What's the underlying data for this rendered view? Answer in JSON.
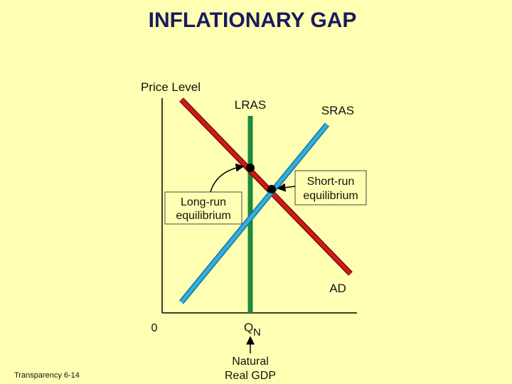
{
  "title": "INFLATIONARY GAP",
  "axes": {
    "y_label": "Price Level",
    "origin": "0",
    "quantity": {
      "main": "Q",
      "sub": "N"
    },
    "quantity_note": [
      "Natural",
      "Real GDP"
    ]
  },
  "curves": {
    "lras": "LRAS",
    "sras": "SRAS",
    "ad": "AD"
  },
  "callouts": {
    "long_run": [
      "Long-run",
      "equilibrium"
    ],
    "short_run": [
      "Short-run",
      "equilibrium"
    ]
  },
  "footer": "Transparency 6-14"
}
